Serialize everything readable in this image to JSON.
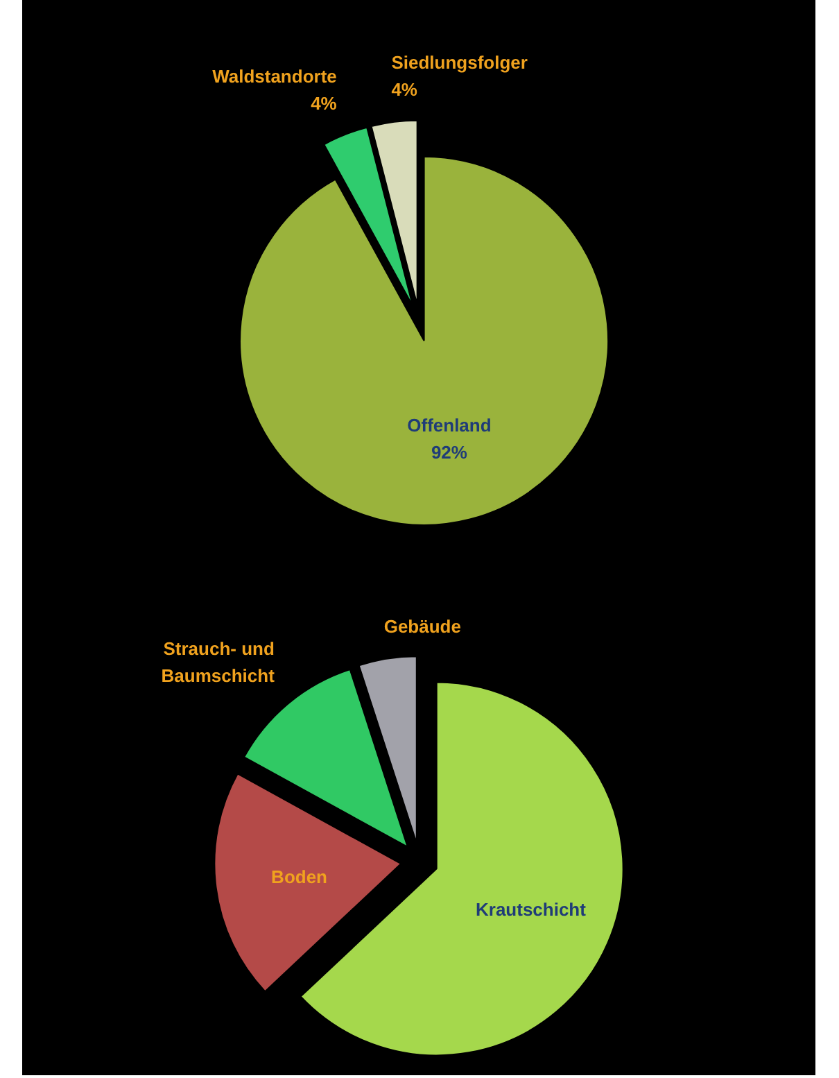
{
  "chart_data": [
    {
      "type": "pie",
      "categories": [
        "Offenland",
        "Waldstandorte",
        "Siedlungsfolger"
      ],
      "values": [
        92,
        4,
        4
      ],
      "colors": [
        "#9ab33c",
        "#2fcc6e",
        "#d9dcba"
      ],
      "value_labels": [
        "92%",
        "4%",
        "4%"
      ]
    },
    {
      "type": "pie",
      "categories": [
        "Krautschicht",
        "Boden",
        "Strauch- und Baumschicht",
        "Gebäude"
      ],
      "values": [
        63,
        20,
        12,
        5
      ],
      "colors": [
        "#a5d84c",
        "#b44a48",
        "#30c964",
        "#a2a2aa"
      ]
    }
  ]
}
